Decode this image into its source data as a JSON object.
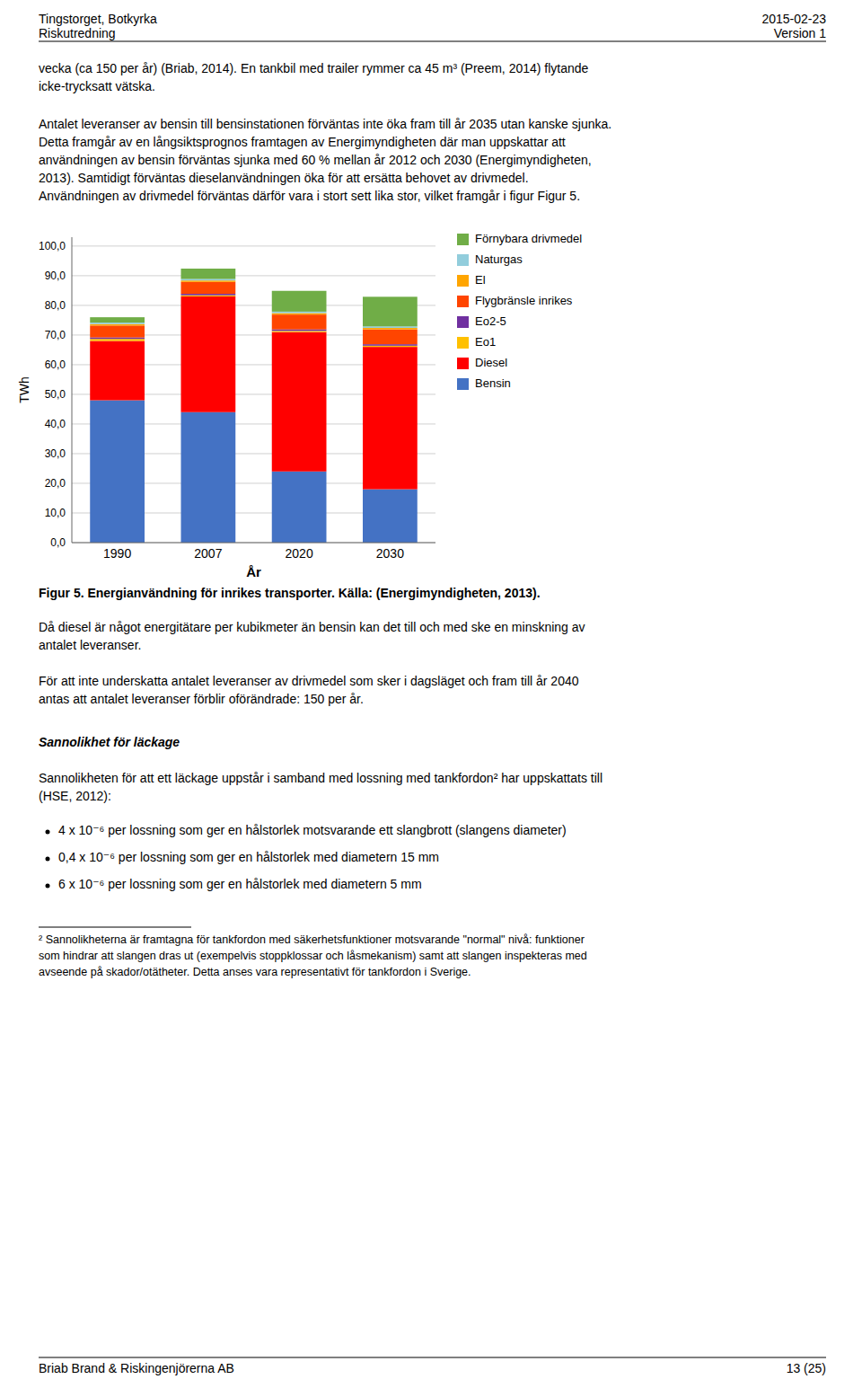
{
  "chart_data": {
    "type": "bar",
    "stacked": true,
    "categories": [
      "1990",
      "2007",
      "2020",
      "2030"
    ],
    "series": [
      {
        "name": "Bensin",
        "color": "#4472C4",
        "values": [
          48.0,
          44.0,
          24.0,
          18.0
        ]
      },
      {
        "name": "Diesel",
        "color": "#FF0000",
        "values": [
          20.0,
          39.0,
          47.0,
          48.0
        ]
      },
      {
        "name": "Eo1",
        "color": "#FFC000",
        "values": [
          0.7,
          0.4,
          0.4,
          0.4
        ]
      },
      {
        "name": "Eo2-5",
        "color": "#7030A0",
        "values": [
          0.5,
          0.5,
          0.5,
          0.5
        ]
      },
      {
        "name": "Flygbränsle inrikes",
        "color": "#FF4500",
        "values": [
          4.0,
          4.0,
          5.0,
          5.0
        ]
      },
      {
        "name": "El",
        "color": "#FFA500",
        "values": [
          0.5,
          0.5,
          0.5,
          0.5
        ]
      },
      {
        "name": "Naturgas",
        "color": "#92CDDC",
        "values": [
          0.5,
          0.5,
          0.5,
          0.5
        ]
      },
      {
        "name": "Förnybara drivmedel",
        "color": "#70AD47",
        "values": [
          1.8,
          3.5,
          7.0,
          10.0
        ]
      }
    ],
    "xlabel": "År",
    "ylabel": "TWh",
    "ylim": [
      0,
      103
    ],
    "yticks": [
      {
        "value": 0,
        "label": "0,0"
      },
      {
        "value": 10,
        "label": "10,0"
      },
      {
        "value": 20,
        "label": "20,0"
      },
      {
        "value": 30,
        "label": "30,0"
      },
      {
        "value": 40,
        "label": "40,0"
      },
      {
        "value": 50,
        "label": "50,0"
      },
      {
        "value": 60,
        "label": "60,0"
      },
      {
        "value": 70,
        "label": "70,0"
      },
      {
        "value": 80,
        "label": "80,0"
      },
      {
        "value": 90,
        "label": "90,0"
      },
      {
        "value": 100,
        "label": "100,0"
      }
    ],
    "grid": true,
    "legend": "right"
  },
  "page": {
    "header_left_1": "Tingstorget, Botkyrka",
    "header_left_2": "Riskutredning",
    "header_right_1": "2015-02-23",
    "header_right_2": "Version 1",
    "para1_lines": [
      "vecka (ca 150 per år) (Briab, 2014). En tankbil med trailer rymmer ca 45 m³ (Preem, 2014) flytande",
      "icke-trycksatt vätska."
    ],
    "para2_lines": [
      "Antalet leveranser av bensin till bensinstationen förväntas inte öka fram till år 2035 utan kanske sjunka.",
      "Detta framgår av en långsiktsprognos framtagen av Energimyndigheten där man uppskattar att",
      "användningen av bensin förväntas sjunka med 60 % mellan år 2012 och 2030 (Energimyndigheten,",
      "2013). Samtidigt förväntas dieselanvändningen öka för att ersätta behovet av drivmedel.",
      "Användningen av drivmedel förväntas därför vara i stort sett lika stor, vilket framgår i figur Figur 5."
    ],
    "fig_caption_bold": "Figur 5. Energianvändning för inrikes transporter. Källa: (Energimyndigheten, 2013).",
    "after_para1_lines": [
      "Då diesel är något energitätare per kubikmeter än bensin kan det till och med ske en minskning av",
      "antalet leveranser."
    ],
    "after_para2_lines": [
      "För att inte underskatta antalet leveranser av drivmedel som sker i dagsläget och fram till år 2040",
      "antas att antalet leveranser förblir oförändrade: 150 per år."
    ],
    "sannolikhet_header": "Sannolikhet för läckage",
    "sannolikhet_para_lines": [
      "Sannolikheten för att ett läckage uppstår i samband med lossning med tankfordon² har uppskattats till",
      "(HSE, 2012):"
    ],
    "bullets": [
      "4 x 10⁻⁶ per lossning som ger en hålstorlek motsvarande ett slangbrott (slangens diameter)",
      "0,4 x 10⁻⁶ per lossning som ger en hålstorlek med diametern 15 mm",
      "6 x 10⁻⁶ per lossning som ger en hålstorlek med diametern 5 mm"
    ],
    "footnote_text_lines": [
      "² Sannolikheterna är framtagna för tankfordon med säkerhetsfunktioner motsvarande \"normal\" nivå: funktioner",
      "som hindrar att slangen dras ut (exempelvis stoppklossar och låsmekanism) samt att slangen inspekteras med",
      "avseende på skador/otätheter. Detta anses vara representativt för tankfordon i Sverige."
    ],
    "footer_left": "Briab Brand & Riskingenjörerna AB",
    "footer_right": "13 (25)"
  }
}
